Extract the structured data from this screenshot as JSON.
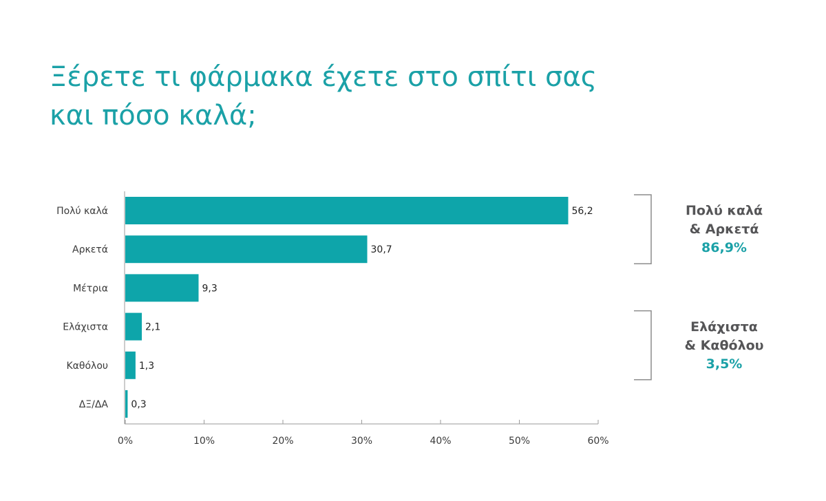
{
  "title_lines": [
    "Ξέρετε τι φάρμακα έχετε στο σπίτι σας",
    "και πόσο καλά;"
  ],
  "chart_data": {
    "type": "bar",
    "orientation": "horizontal",
    "categories": [
      "Πολύ καλά",
      "Αρκετά",
      "Μέτρια",
      "Ελάχιστα",
      "Καθόλου",
      "ΔΞ/ΔΑ"
    ],
    "values": [
      56.2,
      30.7,
      9.3,
      2.1,
      1.3,
      0.3
    ],
    "value_labels": [
      "56,2",
      "30,7",
      "9,3",
      "2,1",
      "1,3",
      "0,3"
    ],
    "xlim": [
      0,
      60
    ],
    "xticks": [
      0,
      10,
      20,
      30,
      40,
      50,
      60
    ],
    "xtick_labels": [
      "0%",
      "10%",
      "20%",
      "30%",
      "40%",
      "50%",
      "60%"
    ],
    "grid": false,
    "bar_color": "#0ea5aa",
    "groups": [
      {
        "lines": [
          "Πολύ καλά",
          "& Αρκετά"
        ],
        "percent": "86,9%",
        "first_category": 0,
        "last_category": 1
      },
      {
        "lines": [
          "Ελάχιστα",
          "& Καθόλου"
        ],
        "percent": "3,5%",
        "first_category": 3,
        "last_category": 4
      }
    ]
  },
  "colors": {
    "accent": "#1ba1a7",
    "bar": "#0ea5aa",
    "text": "#3a3a3a",
    "group_text": "#555557",
    "axis": "#9a9a9a",
    "bracket": "#8c8c8c"
  }
}
